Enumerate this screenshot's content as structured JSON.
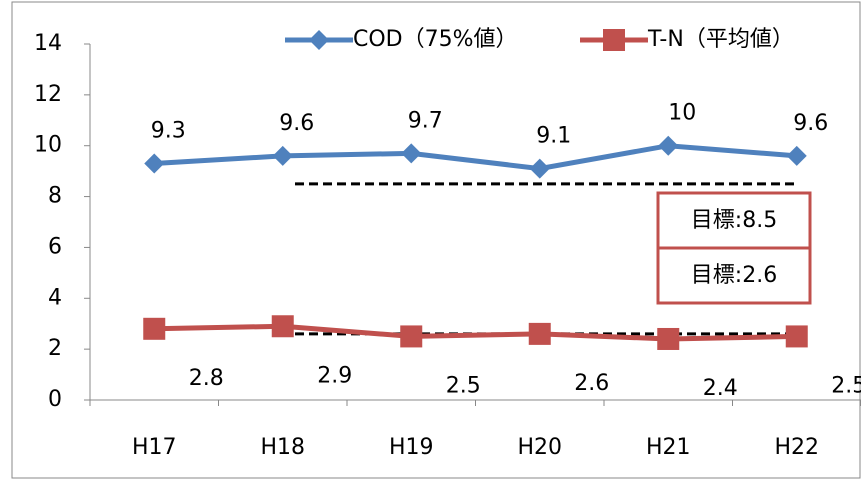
{
  "chart_data": {
    "type": "line",
    "categories": [
      "H17",
      "H18",
      "H19",
      "H20",
      "H21",
      "H22"
    ],
    "series": [
      {
        "name": "COD（75%値）",
        "color": "#4f81bd",
        "marker": "diamond",
        "values": [
          9.3,
          9.6,
          9.7,
          9.1,
          10,
          9.6
        ]
      },
      {
        "name": "T-N（平均値）",
        "color": "#c0504d",
        "marker": "square",
        "values": [
          2.8,
          2.9,
          2.5,
          2.6,
          2.4,
          2.5
        ]
      }
    ],
    "ylim": [
      0,
      14
    ],
    "yticks": [
      0,
      2,
      4,
      6,
      8,
      10,
      12,
      14
    ],
    "grid": false,
    "legend": "top",
    "annotations": [
      {
        "text": "目標:8.5",
        "value": 8.5
      },
      {
        "text": "目標:2.6",
        "value": 2.6
      }
    ]
  }
}
